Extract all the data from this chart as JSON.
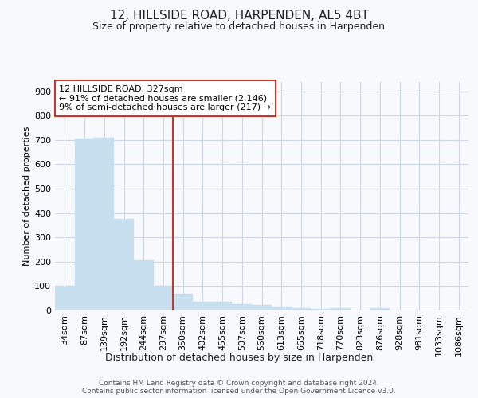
{
  "title": "12, HILLSIDE ROAD, HARPENDEN, AL5 4BT",
  "subtitle": "Size of property relative to detached houses in Harpenden",
  "xlabel": "Distribution of detached houses by size in Harpenden",
  "ylabel": "Number of detached properties",
  "categories": [
    "34sqm",
    "87sqm",
    "139sqm",
    "192sqm",
    "244sqm",
    "297sqm",
    "350sqm",
    "402sqm",
    "455sqm",
    "507sqm",
    "560sqm",
    "613sqm",
    "665sqm",
    "718sqm",
    "770sqm",
    "823sqm",
    "876sqm",
    "928sqm",
    "981sqm",
    "1033sqm",
    "1086sqm"
  ],
  "values": [
    100,
    707,
    711,
    375,
    207,
    100,
    70,
    35,
    35,
    25,
    22,
    12,
    10,
    7,
    10,
    0,
    10,
    0,
    0,
    0,
    0
  ],
  "bar_color": "#c8dff0",
  "bar_edge_color": "#c8dff0",
  "vline_color": "#c0392b",
  "vline_x_idx": 6,
  "ann_line1": "12 HILLSIDE ROAD: 327sqm",
  "ann_line2": "← 91% of detached houses are smaller (2,146)",
  "ann_line3": "9% of semi-detached houses are larger (217) →",
  "ann_box_color": "#c0392b",
  "ann_bg_color": "#ffffff",
  "ylim": [
    0,
    940
  ],
  "yticks": [
    0,
    100,
    200,
    300,
    400,
    500,
    600,
    700,
    800,
    900
  ],
  "bg_color": "#f7f9fc",
  "plot_bg_color": "#f7f9fc",
  "grid_color": "#d0d8e8",
  "footer_line1": "Contains HM Land Registry data © Crown copyright and database right 2024.",
  "footer_line2": "Contains public sector information licensed under the Open Government Licence v3.0.",
  "title_fontsize": 11,
  "subtitle_fontsize": 9,
  "xlabel_fontsize": 9,
  "ylabel_fontsize": 8,
  "tick_fontsize": 8,
  "footer_fontsize": 6.5
}
